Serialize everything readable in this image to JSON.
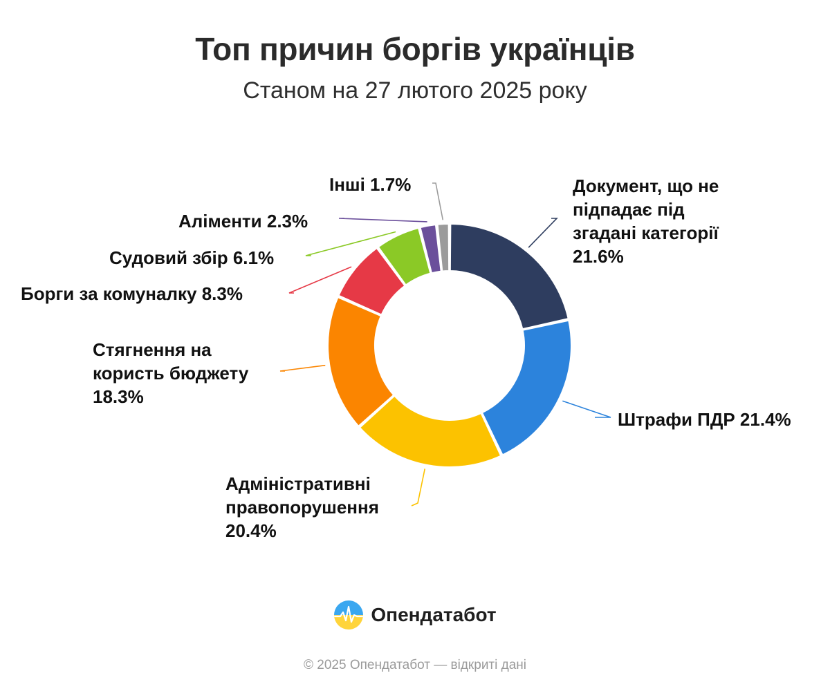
{
  "header": {
    "title": "Топ причин боргів українців",
    "subtitle": "Станом на 27 лютого 2025 року"
  },
  "chart_data": {
    "type": "pie",
    "subtype": "donut",
    "title": "Топ причин боргів українців",
    "subtitle": "Станом на 27 лютого 2025 року",
    "unit": "%",
    "slices": [
      {
        "name": "Документ, що не підпадає під згадані категорії",
        "label": "Документ, що не підпадає під згадані категорії 21.6%",
        "value": 21.6,
        "color": "#2e3d5f"
      },
      {
        "name": "Штрафи ПДР",
        "label": "Штрафи ПДР 21.4%",
        "value": 21.4,
        "color": "#2c83dc"
      },
      {
        "name": "Адміністративні правопорушення",
        "label": "Адміністративні правопорушення 20.4%",
        "value": 20.4,
        "color": "#fcc200"
      },
      {
        "name": "Стягнення на користь бюджету",
        "label": "Стягнення на користь бюджету 18.3%",
        "value": 18.3,
        "color": "#fb8500"
      },
      {
        "name": "Борги за комуналку",
        "label": "Борги за комуналку 8.3%",
        "value": 8.3,
        "color": "#e63946"
      },
      {
        "name": "Судовий збір",
        "label": "Судовий збір 6.1%",
        "value": 6.1,
        "color": "#8bc926"
      },
      {
        "name": "Аліменти",
        "label": "Аліменти 2.3%",
        "value": 2.3,
        "color": "#6b4f9b"
      },
      {
        "name": "Інші",
        "label": "Інші 1.7%",
        "value": 1.7,
        "color": "#9b9b9b"
      }
    ],
    "legend": "none",
    "labels": "outside with leader lines"
  },
  "brand": {
    "name": "Опендатабот",
    "logo_icon": "opendatabot-logo-icon"
  },
  "footer": {
    "text": "© 2025 Опендатабот — відкриті дані"
  }
}
